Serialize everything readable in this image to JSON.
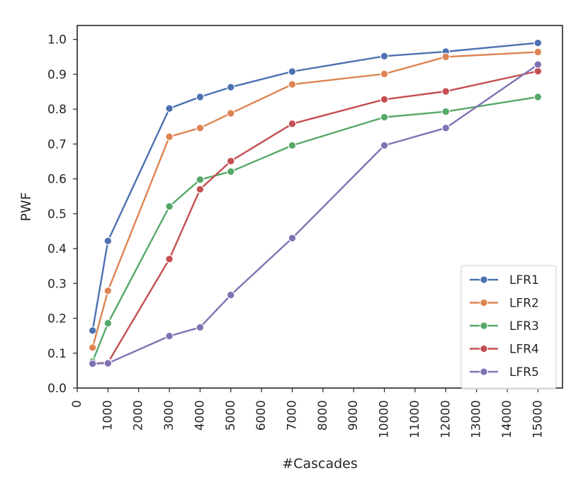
{
  "chart_data": {
    "type": "line",
    "title": "",
    "xlabel": "#Cascades",
    "ylabel": "PWF",
    "xlim": [
      0,
      15800
    ],
    "ylim": [
      0.0,
      1.04
    ],
    "x_ticks": [
      0,
      1000,
      2000,
      3000,
      4000,
      5000,
      6000,
      7000,
      8000,
      9000,
      10000,
      11000,
      12000,
      13000,
      14000,
      15000
    ],
    "x_tick_labels": [
      "0",
      "1000",
      "2000",
      "3000",
      "4000",
      "5000",
      "6000",
      "7000",
      "8000",
      "9000",
      "10000",
      "11000",
      "12000",
      "13000",
      "14000",
      "15000"
    ],
    "y_ticks": [
      0.0,
      0.1,
      0.2,
      0.3,
      0.4,
      0.5,
      0.6,
      0.7,
      0.8,
      0.9,
      1.0
    ],
    "y_tick_labels": [
      "0.0",
      "0.1",
      "0.2",
      "0.3",
      "0.4",
      "0.5",
      "0.6",
      "0.7",
      "0.8",
      "0.9",
      "1.0"
    ],
    "grid": false,
    "legend_position": "lower-right",
    "series": [
      {
        "name": "LFR1",
        "color": "#4c72b0",
        "x": [
          500,
          1000,
          3000,
          4000,
          5000,
          7000,
          10000,
          12000,
          15000
        ],
        "values": [
          0.165,
          0.422,
          0.802,
          0.835,
          0.863,
          0.908,
          0.952,
          0.965,
          0.99
        ]
      },
      {
        "name": "LFR2",
        "color": "#dd8452",
        "x": [
          500,
          1000,
          3000,
          4000,
          5000,
          7000,
          10000,
          12000,
          15000
        ],
        "values": [
          0.116,
          0.279,
          0.721,
          0.746,
          0.788,
          0.871,
          0.901,
          0.95,
          0.964
        ]
      },
      {
        "name": "LFR3",
        "color": "#55a868",
        "x": [
          500,
          1000,
          3000,
          4000,
          5000,
          7000,
          10000,
          12000,
          15000
        ],
        "values": [
          0.076,
          0.186,
          0.521,
          0.598,
          0.621,
          0.696,
          0.777,
          0.793,
          0.835
        ]
      },
      {
        "name": "LFR4",
        "color": "#c44e52",
        "x": [
          500,
          1000,
          3000,
          4000,
          5000,
          7000,
          10000,
          12000,
          15000
        ],
        "values": [
          0.07,
          0.073,
          0.37,
          0.57,
          0.651,
          0.758,
          0.828,
          0.851,
          0.909
        ]
      },
      {
        "name": "LFR5",
        "color": "#8172b3",
        "x": [
          500,
          1000,
          3000,
          4000,
          5000,
          7000,
          10000,
          12000,
          15000
        ],
        "values": [
          0.07,
          0.071,
          0.149,
          0.174,
          0.267,
          0.43,
          0.696,
          0.746,
          0.928
        ]
      }
    ]
  }
}
